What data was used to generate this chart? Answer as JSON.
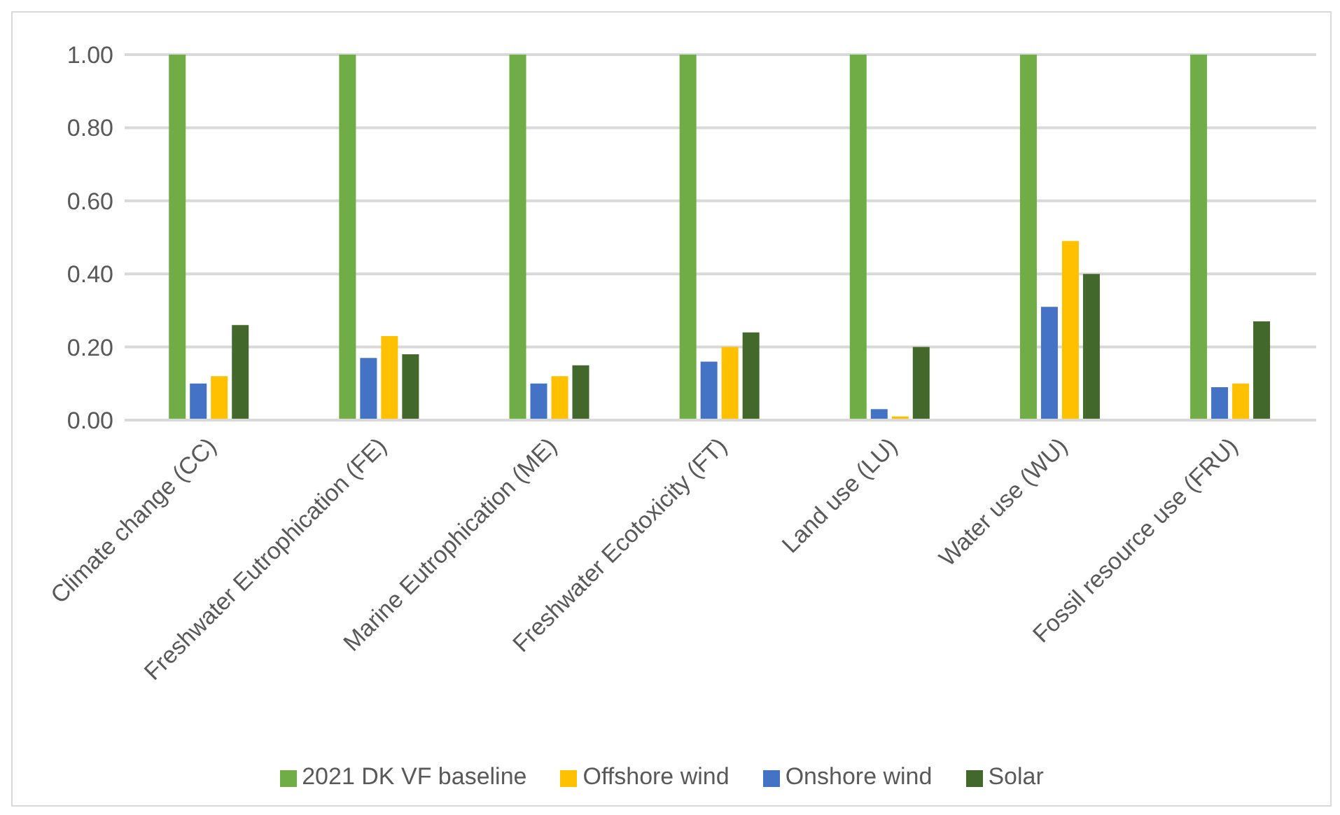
{
  "chart_data": {
    "type": "bar",
    "categories": [
      "Climate change (CC)",
      "Freshwater Eutrophication (FE)",
      "Marine Eutrophication (ME)",
      "Freshwater Ecotoxicity (FT)",
      "Land use (LU)",
      "Water use (WU)",
      "Fossil resource use (FRU)"
    ],
    "series": [
      {
        "name": "2021 DK VF baseline",
        "color": "#70ad47",
        "values": [
          1,
          1,
          1,
          1,
          1,
          1,
          1
        ]
      },
      {
        "name": "Onshore wind",
        "color": "#4472c4",
        "values": [
          0.1,
          0.17,
          0.1,
          0.16,
          0.03,
          0.31,
          0.09
        ]
      },
      {
        "name": "Offshore wind",
        "color": "#ffc000",
        "values": [
          0.12,
          0.23,
          0.12,
          0.2,
          0.01,
          0.49,
          0.1
        ]
      },
      {
        "name": "Solar",
        "color": "#43682b",
        "values": [
          0.26,
          0.18,
          0.15,
          0.24,
          0.2,
          0.4,
          0.27
        ]
      }
    ],
    "ylim": [
      0,
      1
    ],
    "yticks": [
      {
        "value": 0,
        "label": "0.00"
      },
      {
        "value": 0.2,
        "label": "0.20"
      },
      {
        "value": 0.4,
        "label": "0.40"
      },
      {
        "value": 0.6,
        "label": "0.60"
      },
      {
        "value": 0.8,
        "label": "0.80"
      },
      {
        "value": 1,
        "label": "1.00"
      }
    ],
    "grid": "y",
    "legend": "bottom"
  }
}
